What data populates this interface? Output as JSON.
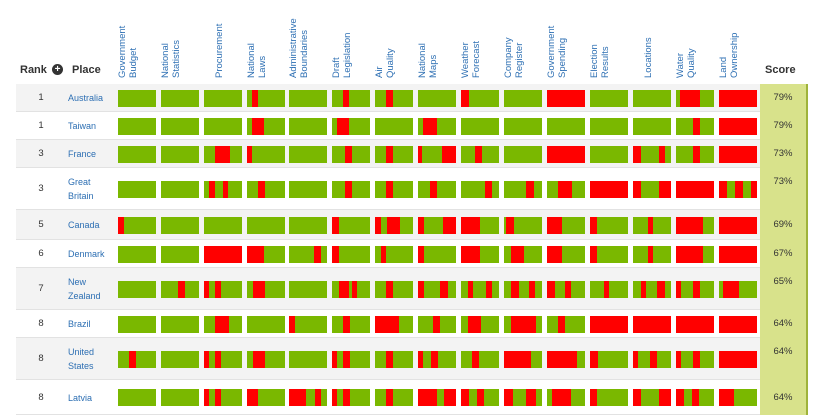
{
  "header": {
    "rank": "Rank",
    "place": "Place",
    "score": "Score",
    "sort_icon": "plus-circle-icon"
  },
  "columns": [
    [
      "Government",
      "Budget"
    ],
    [
      "National",
      "Statistics"
    ],
    [
      "Procurement"
    ],
    [
      "National",
      "Laws"
    ],
    [
      "Administrative",
      "Boundaries"
    ],
    [
      "Draft",
      "Legislation"
    ],
    [
      "Air",
      "Quality"
    ],
    [
      "National",
      "Maps"
    ],
    [
      "Weather",
      "Forecast"
    ],
    [
      "Company",
      "Register"
    ],
    [
      "Government",
      "Spending"
    ],
    [
      "Election",
      "Results"
    ],
    [
      "Locations"
    ],
    [
      "Water",
      "Quality"
    ],
    [
      "Land",
      "Ownership"
    ]
  ],
  "colors": {
    "open": "#7ab800",
    "closed": "#ff0000",
    "score_bg": "#d8e28b",
    "link": "#2d6fb3"
  },
  "rows": [
    {
      "rank": "1",
      "place": [
        "Australia"
      ],
      "score": "79%",
      "cells": [
        [],
        [],
        [],
        [
          [
            0.12,
            0.28
          ]
        ],
        [],
        [
          [
            0.28,
            0.44
          ]
        ],
        [
          [
            0.3,
            0.48
          ]
        ],
        [],
        [
          [
            0,
            0.2
          ]
        ],
        [],
        [
          [
            0,
            1
          ]
        ],
        [],
        [],
        [
          [
            0.1,
            0.62
          ]
        ],
        [
          [
            0,
            1
          ]
        ]
      ]
    },
    {
      "rank": "1",
      "place": [
        "Taiwan"
      ],
      "score": "79%",
      "cells": [
        [],
        [],
        [],
        [
          [
            0.12,
            0.45
          ]
        ],
        [],
        [
          [
            0.14,
            0.46
          ]
        ],
        [],
        [
          [
            0.12,
            0.5
          ]
        ],
        [],
        [],
        [],
        [],
        [],
        [
          [
            0.45,
            0.62
          ]
        ],
        [
          [
            0,
            1
          ]
        ]
      ]
    },
    {
      "rank": "3",
      "place": [
        "France"
      ],
      "score": "73%",
      "cells": [
        [],
        [],
        [
          [
            0.3,
            0.68
          ]
        ],
        [
          [
            0,
            0.14
          ]
        ],
        [],
        [
          [
            0.34,
            0.52
          ]
        ],
        [
          [
            0.3,
            0.48
          ]
        ],
        [
          [
            0,
            0.1
          ],
          [
            0.63,
            1
          ]
        ],
        [
          [
            0.36,
            0.56
          ]
        ],
        [],
        [
          [
            0,
            1
          ]
        ],
        [],
        [
          [
            0,
            0.22
          ],
          [
            0.68,
            0.85
          ]
        ],
        [
          [
            0.45,
            0.62
          ]
        ],
        [
          [
            0,
            1
          ]
        ]
      ]
    },
    {
      "rank": "3",
      "place": [
        "Great",
        "Britain"
      ],
      "score": "73%",
      "cells": [
        [],
        [],
        [
          [
            0.14,
            0.28
          ],
          [
            0.5,
            0.62
          ]
        ],
        [
          [
            0.3,
            0.48
          ]
        ],
        [],
        [
          [
            0.34,
            0.52
          ]
        ],
        [
          [
            0.3,
            0.48
          ]
        ],
        [
          [
            0.32,
            0.5
          ]
        ],
        [
          [
            0.64,
            0.82
          ]
        ],
        [
          [
            0.58,
            0.78
          ]
        ],
        [
          [
            0.3,
            0.65
          ]
        ],
        [
          [
            0,
            1
          ]
        ],
        [
          [
            0,
            0.2
          ],
          [
            0.68,
            1
          ]
        ],
        [
          [
            0,
            1
          ]
        ],
        [
          [
            0,
            0.2
          ],
          [
            0.42,
            0.62
          ],
          [
            0.85,
            1
          ]
        ]
      ]
    },
    {
      "rank": "5",
      "place": [
        "Canada"
      ],
      "score": "69%",
      "cells": [
        [
          [
            0,
            0.16
          ]
        ],
        [],
        [],
        [],
        [],
        [
          [
            0,
            0.18
          ]
        ],
        [
          [
            0,
            0.15
          ],
          [
            0.32,
            0.66
          ]
        ],
        [
          [
            0,
            0.16
          ],
          [
            0.67,
            1
          ]
        ],
        [
          [
            0,
            0.5
          ]
        ],
        [
          [
            0.06,
            0.26
          ]
        ],
        [
          [
            0,
            0.4
          ]
        ],
        [
          [
            0,
            0.18
          ]
        ],
        [
          [
            0.4,
            0.52
          ]
        ],
        [
          [
            0,
            0.7
          ]
        ],
        [
          [
            0,
            1
          ]
        ]
      ]
    },
    {
      "rank": "6",
      "place": [
        "Denmark"
      ],
      "score": "67%",
      "cells": [
        [],
        [],
        [
          [
            0,
            1
          ]
        ],
        [
          [
            0,
            0.46
          ]
        ],
        [
          [
            0.66,
            0.84
          ]
        ],
        [
          [
            0,
            0.18
          ]
        ],
        [
          [
            0.15,
            0.28
          ]
        ],
        [
          [
            0,
            0.16
          ]
        ],
        [
          [
            0,
            0.5
          ]
        ],
        [
          [
            0.18,
            0.52
          ]
        ],
        [
          [
            0,
            0.4
          ]
        ],
        [
          [
            0,
            0.18
          ]
        ],
        [
          [
            0.4,
            0.52
          ]
        ],
        [
          [
            0,
            0.7
          ]
        ],
        [
          [
            0,
            1
          ]
        ]
      ]
    },
    {
      "rank": "7",
      "place": [
        "New",
        "Zealand"
      ],
      "score": "65%",
      "cells": [
        [],
        [
          [
            0.45,
            0.62
          ]
        ],
        [
          [
            0,
            0.12
          ],
          [
            0.3,
            0.44
          ]
        ],
        [
          [
            0.15,
            0.48
          ]
        ],
        [],
        [
          [
            0.18,
            0.45
          ],
          [
            0.52,
            0.65
          ]
        ],
        [
          [
            0.3,
            0.48
          ]
        ],
        [
          [
            0,
            0.15
          ],
          [
            0.58,
            0.8
          ]
        ],
        [
          [
            0.18,
            0.32
          ],
          [
            0.66,
            0.82
          ]
        ],
        [
          [
            0.18,
            0.4
          ],
          [
            0.65,
            0.82
          ]
        ],
        [
          [
            0,
            0.2
          ],
          [
            0.48,
            0.62
          ]
        ],
        [
          [
            0.36,
            0.5
          ]
        ],
        [
          [
            0.2,
            0.34
          ],
          [
            0.64,
            0.85
          ]
        ],
        [
          [
            0,
            0.14
          ],
          [
            0.44,
            0.62
          ]
        ],
        [
          [
            0.1,
            0.52
          ]
        ]
      ]
    },
    {
      "rank": "8",
      "place": [
        "Brazil"
      ],
      "score": "64%",
      "cells": [
        [],
        [],
        [
          [
            0.3,
            0.66
          ]
        ],
        [],
        [
          [
            0,
            0.15
          ]
        ],
        [
          [
            0.3,
            0.48
          ]
        ],
        [
          [
            0,
            0.64
          ]
        ],
        [
          [
            0.4,
            0.58
          ]
        ],
        [
          [
            0.18,
            0.52
          ]
        ],
        [
          [
            0.18,
            0.84
          ]
        ],
        [
          [
            0.3,
            0.48
          ]
        ],
        [
          [
            0,
            1
          ]
        ],
        [
          [
            0,
            1
          ]
        ],
        [
          [
            0,
            1
          ]
        ],
        [
          [
            0,
            1
          ]
        ]
      ]
    },
    {
      "rank": "8",
      "place": [
        "United",
        "States"
      ],
      "score": "64%",
      "cells": [
        [
          [
            0.3,
            0.48
          ]
        ],
        [],
        [
          [
            0,
            0.12
          ],
          [
            0.3,
            0.44
          ]
        ],
        [
          [
            0.15,
            0.48
          ]
        ],
        [],
        [
          [
            0,
            0.14
          ],
          [
            0.3,
            0.48
          ]
        ],
        [
          [
            0.3,
            0.48
          ]
        ],
        [
          [
            0,
            0.12
          ],
          [
            0.34,
            0.52
          ]
        ],
        [
          [
            0.3,
            0.48
          ]
        ],
        [
          [
            0,
            0.7
          ]
        ],
        [
          [
            0,
            0.8
          ]
        ],
        [
          [
            0,
            0.2
          ]
        ],
        [
          [
            0,
            0.14
          ],
          [
            0.44,
            0.62
          ]
        ],
        [
          [
            0,
            0.14
          ],
          [
            0.44,
            0.62
          ]
        ],
        [
          [
            0,
            1
          ]
        ]
      ]
    },
    {
      "rank": "8",
      "place": [
        "Latvia"
      ],
      "score": "64%",
      "cells": [
        [],
        [],
        [
          [
            0,
            0.12
          ],
          [
            0.3,
            0.44
          ]
        ],
        [
          [
            0,
            0.3
          ]
        ],
        [
          [
            0,
            0.46
          ],
          [
            0.68,
            0.84
          ]
        ],
        [
          [
            0,
            0.14
          ],
          [
            0.3,
            0.48
          ]
        ],
        [
          [
            0.3,
            0.48
          ]
        ],
        [
          [
            0,
            0.5
          ],
          [
            0.68,
            1
          ]
        ],
        [
          [
            0,
            0.2
          ],
          [
            0.42,
            0.6
          ]
        ],
        [
          [
            0,
            0.24
          ],
          [
            0.58,
            0.84
          ]
        ],
        [
          [
            0.12,
            0.64
          ]
        ],
        [
          [
            0,
            0.18
          ]
        ],
        [
          [
            0,
            0.2
          ],
          [
            0.68,
            1
          ]
        ],
        [
          [
            0,
            0.2
          ],
          [
            0.42,
            0.6
          ]
        ],
        [
          [
            0,
            0.4
          ]
        ]
      ]
    }
  ]
}
